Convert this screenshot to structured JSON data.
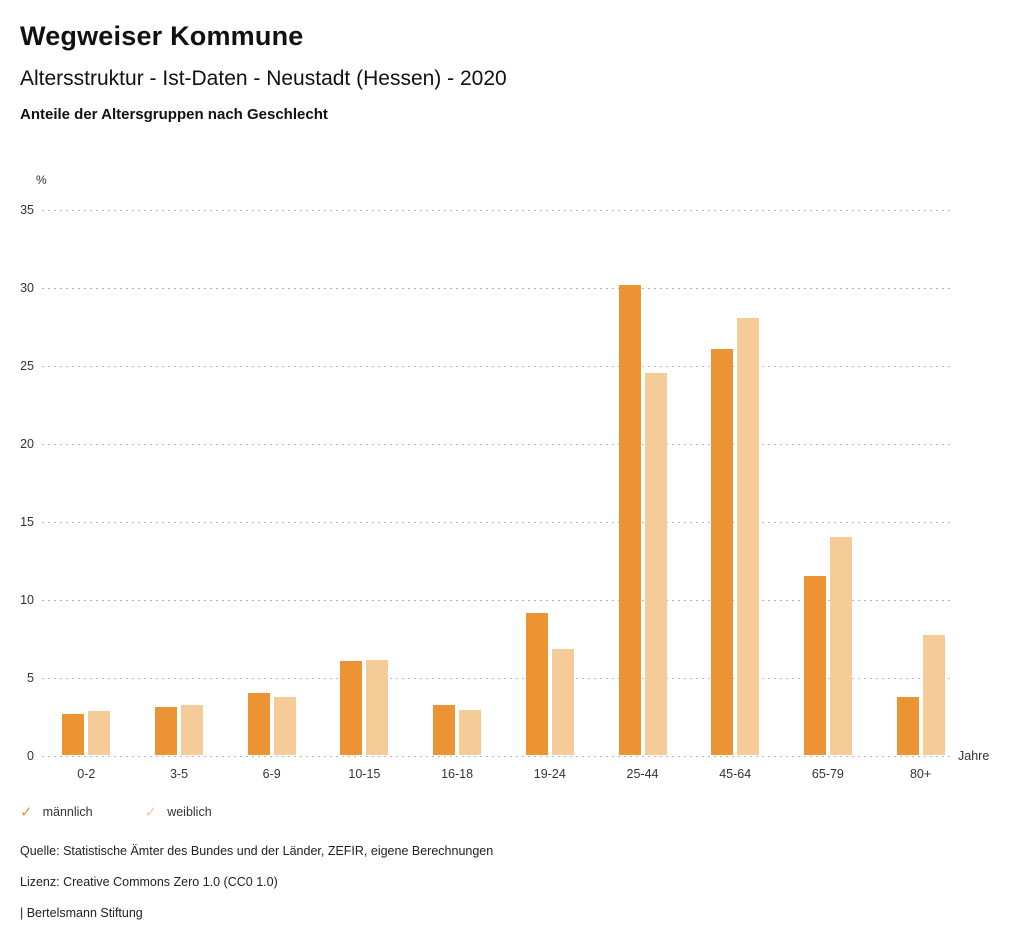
{
  "header": {
    "title": "Wegweiser Kommune",
    "subtitle": "Altersstruktur - Ist-Daten - Neustadt (Hessen) - 2020",
    "subsubtitle": "Anteile der Altersgruppen nach Geschlecht"
  },
  "chart_data": {
    "type": "bar",
    "title": "Anteile der Altersgruppen nach Geschlecht",
    "categories": [
      "0-2",
      "3-5",
      "6-9",
      "10-15",
      "16-18",
      "19-24",
      "25-44",
      "45-64",
      "65-79",
      "80+"
    ],
    "series": [
      {
        "name": "männlich",
        "color": "#EC9434",
        "values": [
          2.6,
          3.1,
          4.0,
          6.0,
          3.2,
          9.1,
          30.1,
          26.0,
          11.5,
          3.7
        ]
      },
      {
        "name": "weiblich",
        "color": "#F5CB98",
        "values": [
          2.8,
          3.2,
          3.7,
          6.1,
          2.9,
          6.8,
          24.5,
          28.0,
          14.0,
          7.7
        ]
      }
    ],
    "xlabel": "Jahre",
    "ylabel": "%",
    "ylim": [
      0,
      35
    ],
    "yticks": [
      0,
      5,
      10,
      15,
      20,
      25,
      30,
      35
    ],
    "grid": "horizontal-dotted",
    "legend_position": "bottom-left"
  },
  "legend": {
    "check_icon": "✓",
    "items": [
      {
        "label": "männlich",
        "color": "#EC9434"
      },
      {
        "label": "weiblich",
        "color": "#F5CB98"
      }
    ]
  },
  "footer": {
    "source": "Quelle: Statistische Ämter des Bundes und der Länder, ZEFIR, eigene Berechnungen",
    "license": "Lizenz: Creative Commons Zero 1.0 (CC0 1.0)",
    "attribution": "| Bertelsmann Stiftung"
  }
}
